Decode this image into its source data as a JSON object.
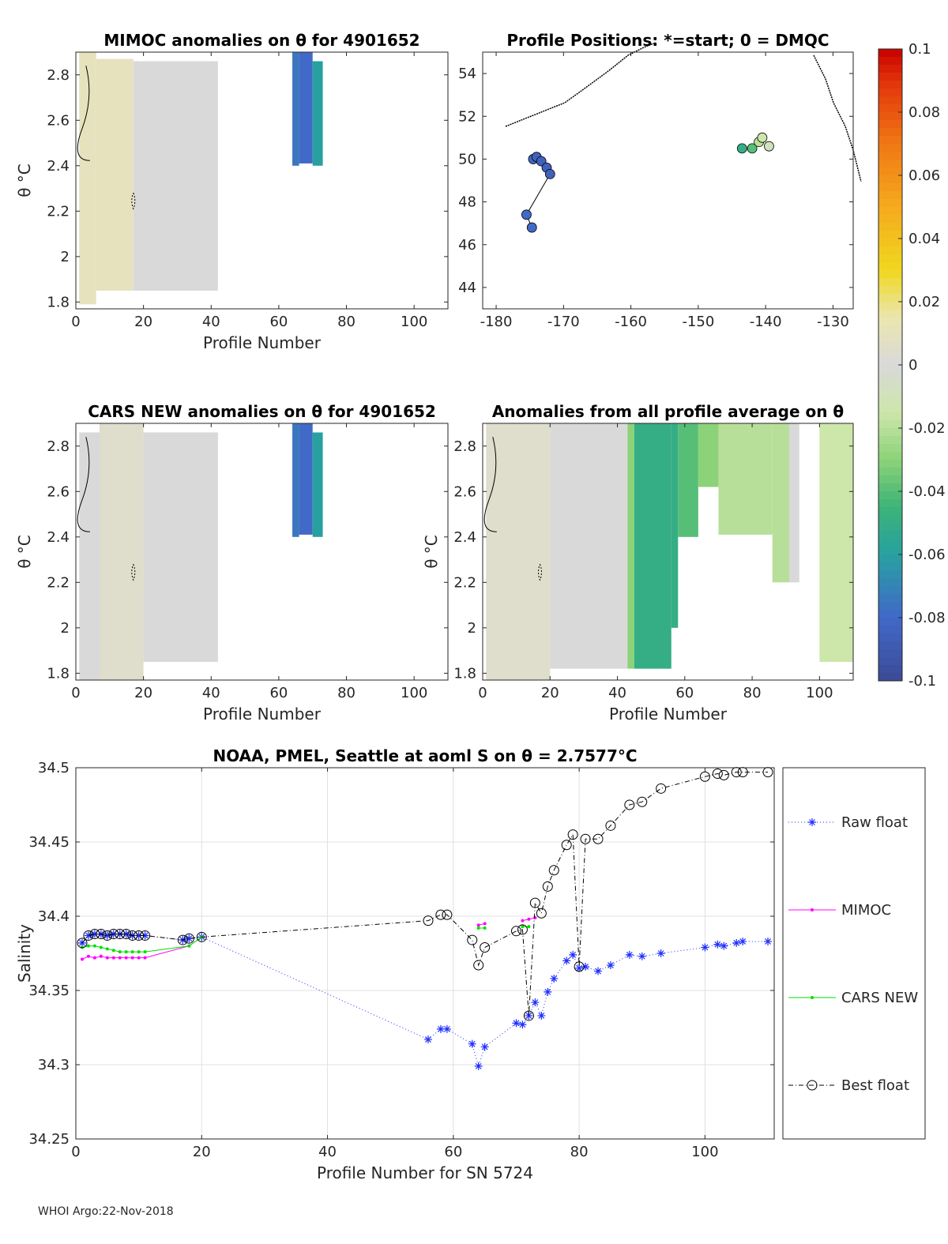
{
  "chart_data": [
    {
      "type": "heatmap",
      "title": "MIMOC anomalies on θ  for 4901652",
      "xlabel": "Profile Number",
      "ylabel": "θ °C",
      "xlim": [
        0,
        110
      ],
      "ylim": [
        1.77,
        2.9
      ],
      "xticks": [
        0,
        20,
        40,
        60,
        80,
        100
      ],
      "yticks": [
        1.8,
        2,
        2.2,
        2.4,
        2.6,
        2.8
      ],
      "cells": [
        {
          "x": [
            1,
            6
          ],
          "y": [
            1.79,
            2.9
          ],
          "v": 0.01
        },
        {
          "x": [
            6,
            17
          ],
          "y": [
            1.85,
            2.87
          ],
          "v": 0.01
        },
        {
          "x": [
            17,
            42
          ],
          "y": [
            1.85,
            2.86
          ],
          "v": 0.0
        },
        {
          "x": [
            64,
            66
          ],
          "y": [
            2.4,
            2.9
          ],
          "v": -0.075
        },
        {
          "x": [
            66,
            70
          ],
          "y": [
            2.41,
            2.9
          ],
          "v": -0.08
        },
        {
          "x": [
            70,
            73
          ],
          "y": [
            2.4,
            2.86
          ],
          "v": -0.06
        }
      ]
    },
    {
      "type": "scatter",
      "title": "Profile Positions: *=start; 0 = DMQC",
      "xlim": [
        -182,
        -127
      ],
      "ylim": [
        43,
        55
      ],
      "xticks": [
        -180,
        -170,
        -160,
        -150,
        -140,
        -130
      ],
      "yticks": [
        44,
        46,
        48,
        50,
        52,
        54
      ],
      "points": [
        {
          "lon": -174.5,
          "lat": 50.0,
          "v": -0.08
        },
        {
          "lon": -174.0,
          "lat": 50.1,
          "v": -0.085
        },
        {
          "lon": -173.3,
          "lat": 49.9,
          "v": -0.085
        },
        {
          "lon": -172.5,
          "lat": 49.6,
          "v": -0.085
        },
        {
          "lon": -172.0,
          "lat": 49.3,
          "v": -0.085
        },
        {
          "lon": -175.5,
          "lat": 47.4,
          "v": -0.08
        },
        {
          "lon": -174.7,
          "lat": 46.8,
          "v": -0.08
        },
        {
          "lon": -143.5,
          "lat": 50.5,
          "v": -0.05
        },
        {
          "lon": -142.0,
          "lat": 50.5,
          "v": -0.04
        },
        {
          "lon": -141.0,
          "lat": 50.8,
          "v": -0.02
        },
        {
          "lon": -140.5,
          "lat": 51.0,
          "v": -0.015
        },
        {
          "lon": -139.5,
          "lat": 50.6,
          "v": -0.01
        }
      ]
    },
    {
      "type": "heatmap",
      "title": "CARS NEW anomalies on θ for 4901652",
      "xlabel": "Profile Number",
      "ylabel": "θ °C",
      "xlim": [
        0,
        110
      ],
      "ylim": [
        1.77,
        2.9
      ],
      "xticks": [
        0,
        20,
        40,
        60,
        80,
        100
      ],
      "yticks": [
        1.8,
        2,
        2.2,
        2.4,
        2.6,
        2.8
      ],
      "cells": [
        {
          "x": [
            1,
            7
          ],
          "y": [
            1.77,
            2.86
          ],
          "v": 0.0
        },
        {
          "x": [
            7,
            20
          ],
          "y": [
            1.77,
            2.9
          ],
          "v": 0.005
        },
        {
          "x": [
            20,
            42
          ],
          "y": [
            1.85,
            2.86
          ],
          "v": 0.0
        },
        {
          "x": [
            64,
            66
          ],
          "y": [
            2.4,
            2.9
          ],
          "v": -0.075
        },
        {
          "x": [
            66,
            70
          ],
          "y": [
            2.41,
            2.9
          ],
          "v": -0.08
        },
        {
          "x": [
            70,
            73
          ],
          "y": [
            2.4,
            2.86
          ],
          "v": -0.06
        }
      ]
    },
    {
      "type": "heatmap",
      "title": "Anomalies from all profile average on θ",
      "xlabel": "Profile Number",
      "ylabel": "θ °C",
      "xlim": [
        0,
        110
      ],
      "ylim": [
        1.77,
        2.9
      ],
      "xticks": [
        0,
        20,
        40,
        60,
        80,
        100
      ],
      "yticks": [
        1.8,
        2,
        2.2,
        2.4,
        2.6,
        2.8
      ],
      "cells": [
        {
          "x": [
            1,
            20
          ],
          "y": [
            1.77,
            2.9
          ],
          "v": 0.005
        },
        {
          "x": [
            20,
            43
          ],
          "y": [
            1.82,
            2.9
          ],
          "v": 0.0
        },
        {
          "x": [
            43,
            45
          ],
          "y": [
            1.82,
            2.9
          ],
          "v": -0.03
        },
        {
          "x": [
            45,
            56
          ],
          "y": [
            1.82,
            2.9
          ],
          "v": -0.05
        },
        {
          "x": [
            56,
            58
          ],
          "y": [
            2.0,
            2.9
          ],
          "v": -0.05
        },
        {
          "x": [
            58,
            64
          ],
          "y": [
            2.4,
            2.9
          ],
          "v": -0.04
        },
        {
          "x": [
            64,
            70
          ],
          "y": [
            2.62,
            2.9
          ],
          "v": -0.03
        },
        {
          "x": [
            70,
            86
          ],
          "y": [
            2.41,
            2.9
          ],
          "v": -0.02
        },
        {
          "x": [
            86,
            91
          ],
          "y": [
            2.2,
            2.9
          ],
          "v": -0.02
        },
        {
          "x": [
            91,
            94
          ],
          "y": [
            2.2,
            2.9
          ],
          "v": 0.0
        },
        {
          "x": [
            100,
            110
          ],
          "y": [
            1.85,
            2.9
          ],
          "v": -0.015
        }
      ]
    },
    {
      "type": "line",
      "title": "NOAA, PMEL, Seattle at aoml S on θ = 2.7577°C",
      "xlabel": "Profile Number for SN 5724",
      "ylabel": "Salinity",
      "xlim": [
        0,
        111
      ],
      "ylim": [
        34.25,
        34.5
      ],
      "xticks": [
        0,
        20,
        40,
        60,
        80,
        100
      ],
      "yticks": [
        34.25,
        34.3,
        34.35,
        34.4,
        34.45,
        34.5
      ],
      "series": [
        {
          "name": "Raw float",
          "x": [
            1,
            2,
            3,
            4,
            5,
            6,
            7,
            8,
            9,
            10,
            11,
            17,
            18,
            20,
            56,
            58,
            59,
            63,
            64,
            65,
            70,
            71,
            72,
            73,
            74,
            75,
            76,
            78,
            79,
            80,
            81,
            83,
            85,
            88,
            90,
            93,
            100,
            102,
            103,
            105,
            106,
            110
          ],
          "y": [
            34.382,
            34.387,
            34.388,
            34.388,
            34.387,
            34.388,
            34.388,
            34.388,
            34.387,
            34.387,
            34.387,
            34.384,
            34.385,
            34.386,
            34.317,
            34.324,
            34.324,
            34.314,
            34.299,
            34.312,
            34.328,
            34.327,
            34.333,
            34.342,
            34.333,
            34.349,
            34.358,
            34.37,
            34.374,
            34.365,
            34.366,
            34.363,
            34.367,
            34.374,
            34.373,
            34.375,
            34.379,
            34.381,
            34.38,
            34.382,
            34.383,
            34.383
          ]
        },
        {
          "name": "MIMOC",
          "x": [
            1,
            2,
            3,
            4,
            5,
            6,
            7,
            8,
            9,
            10,
            11,
            18,
            20,
            64,
            65,
            71,
            72,
            73
          ],
          "y": [
            34.371,
            34.373,
            34.372,
            34.373,
            34.372,
            34.372,
            34.372,
            34.372,
            34.372,
            34.372,
            34.372,
            34.38,
            34.386,
            34.394,
            34.395,
            34.397,
            34.398,
            34.399
          ],
          "segments": [
            [
              0,
              12
            ],
            [
              13,
              14
            ],
            [
              15,
              17
            ]
          ]
        },
        {
          "name": "CARS NEW",
          "x": [
            1,
            2,
            3,
            4,
            5,
            6,
            7,
            8,
            9,
            10,
            11,
            18,
            20,
            64,
            65,
            71,
            72
          ],
          "y": [
            34.379,
            34.38,
            34.38,
            34.379,
            34.378,
            34.377,
            34.376,
            34.376,
            34.376,
            34.376,
            34.376,
            34.38,
            34.386,
            34.392,
            34.392,
            34.393,
            34.393
          ],
          "segments": [
            [
              0,
              12
            ],
            [
              13,
              14
            ],
            [
              15,
              16
            ]
          ]
        },
        {
          "name": "Best float",
          "x": [
            1,
            2,
            3,
            4,
            5,
            6,
            7,
            8,
            9,
            10,
            11,
            17,
            18,
            20,
            56,
            58,
            59,
            63,
            64,
            65,
            70,
            71,
            72,
            73,
            74,
            75,
            76,
            78,
            79,
            80,
            81,
            83,
            85,
            88,
            90,
            93,
            100,
            102,
            103,
            105,
            106,
            110
          ],
          "y": [
            34.382,
            34.387,
            34.388,
            34.388,
            34.387,
            34.388,
            34.388,
            34.388,
            34.387,
            34.387,
            34.387,
            34.384,
            34.385,
            34.386,
            34.397,
            34.401,
            34.401,
            34.384,
            34.367,
            34.379,
            34.39,
            34.391,
            34.333,
            34.409,
            34.402,
            34.42,
            34.431,
            34.448,
            34.455,
            34.366,
            34.452,
            34.452,
            34.461,
            34.475,
            34.477,
            34.486,
            34.494,
            34.496,
            34.495,
            34.497,
            34.497,
            34.497
          ]
        }
      ],
      "legend": [
        "Raw float",
        "MIMOC",
        "CARS NEW",
        "Best float"
      ]
    },
    {
      "type": "colorbar",
      "range": [
        -0.1,
        0.1
      ],
      "ticks": [
        "0.1",
        "0.08",
        "0.06",
        "0.04",
        "0.02",
        "0",
        "-0.02",
        "-0.04",
        "-0.06",
        "-0.08",
        "-0.1"
      ]
    }
  ],
  "footer": "WHOI Argo:22-Nov-2018"
}
